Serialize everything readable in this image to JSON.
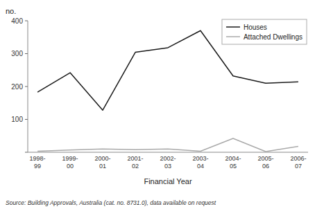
{
  "chart_data": {
    "type": "line",
    "categories": [
      "1998-\n99",
      "1999-\n00",
      "2000-\n01",
      "2001-\n02",
      "2002-\n03",
      "2003-\n04",
      "2004-\n05",
      "2005-\n06",
      "2006-\n07"
    ],
    "series": [
      {
        "name": "Houses",
        "color": "#1a1a1a",
        "values": [
          183,
          242,
          128,
          304,
          318,
          370,
          232,
          210,
          214
        ]
      },
      {
        "name": "Attached Dwellings",
        "color": "#aaaaaa",
        "values": [
          3,
          7,
          10,
          8,
          10,
          3,
          42,
          2,
          18
        ]
      }
    ],
    "y_label": "no.",
    "x_label": "Financial Year",
    "source": "Source: Building Approvals, Australia (cat. no. 8731.0), data available on request",
    "ylim": [
      0,
      400
    ],
    "yticks": [
      {
        "value": 0,
        "label": null
      },
      100,
      200,
      300,
      400
    ],
    "grid": false,
    "legend": "upper right"
  }
}
